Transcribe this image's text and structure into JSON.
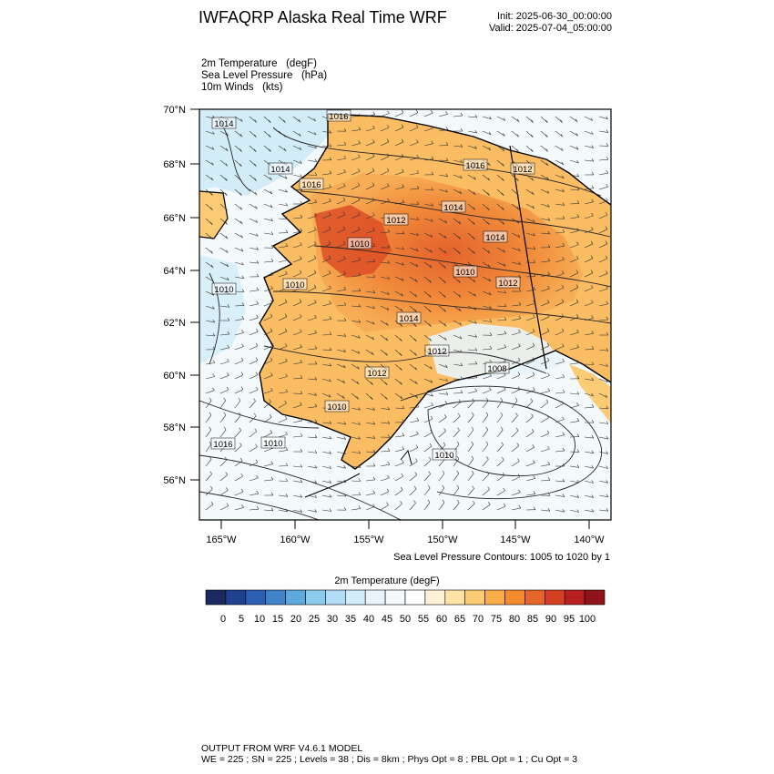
{
  "header": {
    "title": "IWFAQRP Alaska Real Time WRF",
    "init": "Init: 2025-06-30_00:00:00",
    "valid": "Valid: 2025-07-04_05:00:00"
  },
  "fields": [
    "2m Temperature   (degF)",
    "Sea Level Pressure   (hPa)",
    "10m Winds   (kts)"
  ],
  "axes": {
    "lat_labels": [
      "70°N",
      "68°N",
      "66°N",
      "64°N",
      "62°N",
      "60°N",
      "58°N",
      "56°N"
    ],
    "lon_labels": [
      "165°W",
      "160°W",
      "155°W",
      "150°W",
      "145°W",
      "140°W"
    ]
  },
  "pressure_labels": [
    "1014",
    "1016",
    "1014",
    "1016",
    "1016",
    "1012",
    "1014",
    "1012",
    "1010",
    "1014",
    "1010",
    "1010",
    "1012",
    "1010",
    "1014",
    "1012",
    "1012",
    "1008",
    "1010",
    "1016",
    "1010",
    "1010"
  ],
  "slp_note": "Sea Level Pressure Contours: 1005 to 1020 by 1",
  "colorbar": {
    "title": "2m Temperature  (degF)",
    "colors": [
      "#1a2a5e",
      "#1f3f8f",
      "#2c5fb4",
      "#3f83c8",
      "#5da8dc",
      "#8ccbee",
      "#b0dcf4",
      "#d2ecf8",
      "#e8f4fa",
      "#f4f9fb",
      "#ffffff",
      "#fff3d6",
      "#fde3a6",
      "#fccb75",
      "#f8ad48",
      "#f28b30",
      "#e6652a",
      "#d43f24",
      "#b8201f",
      "#8e1418"
    ],
    "labels": [
      "0",
      "5",
      "10",
      "15",
      "20",
      "25",
      "30",
      "35",
      "40",
      "45",
      "50",
      "55",
      "60",
      "65",
      "70",
      "75",
      "80",
      "85",
      "90",
      "95",
      "100"
    ]
  },
  "footer": {
    "line1": "OUTPUT FROM WRF V4.6.1 MODEL",
    "line2": "WE = 225 ; SN = 225 ; Levels = 38 ; Dis = 8km ; Phys Opt = 8 ; PBL Opt = 1 ; Cu Opt = 3"
  }
}
